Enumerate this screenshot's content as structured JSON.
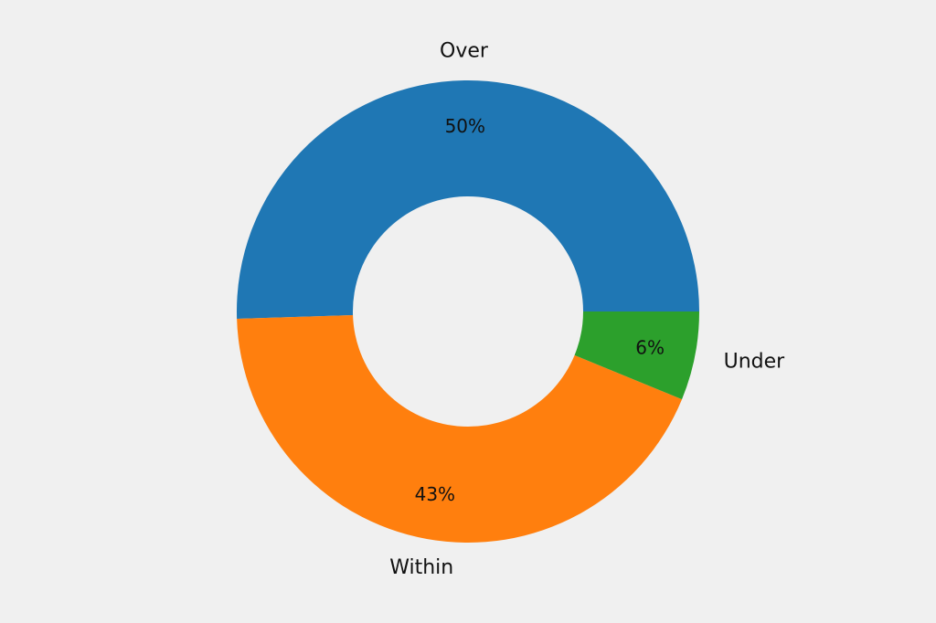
{
  "chart_data": {
    "type": "pie",
    "donut": true,
    "categories": [
      "Over",
      "Within",
      "Under"
    ],
    "values": [
      50.5,
      43.3,
      6.2
    ],
    "percent_labels": [
      "50%",
      "43%",
      "6%"
    ],
    "colors": [
      "#1f77b4",
      "#ff7f0e",
      "#2ca02c"
    ],
    "start_angle_deg": 0,
    "direction": "counterclockwise",
    "legend": "none",
    "background": "#f0f0f0"
  }
}
